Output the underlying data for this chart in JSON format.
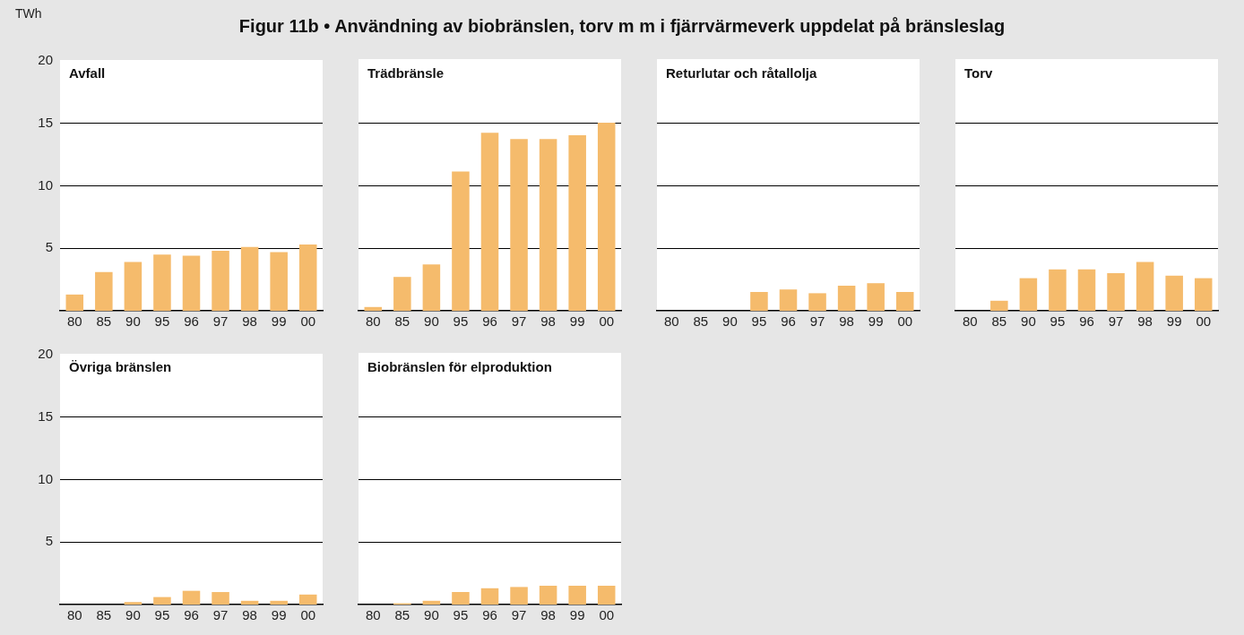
{
  "chart_data": [
    {
      "type": "other",
      "title": "Figur 11b • Användning av biobränslen, torv m m i fjärrvärmeverk uppdelat på bränsleslag"
    },
    {
      "type": "bar",
      "title": "Avfall",
      "ylabel": "TWh",
      "categories": [
        "80",
        "85",
        "90",
        "95",
        "96",
        "97",
        "98",
        "99",
        "00"
      ],
      "values": [
        1.3,
        3.1,
        3.9,
        4.5,
        4.4,
        4.8,
        5.1,
        4.7,
        5.3
      ],
      "color": "#f5bb6c",
      "ylim": [
        0,
        20
      ],
      "yticks": [
        5,
        10,
        15,
        20
      ],
      "grid": "y"
    },
    {
      "type": "bar",
      "title": "Trädbränsle",
      "categories": [
        "80",
        "85",
        "90",
        "95",
        "96",
        "97",
        "98",
        "99",
        "00"
      ],
      "values": [
        0.3,
        2.7,
        3.7,
        11.1,
        14.2,
        13.7,
        13.7,
        14.0,
        15.0
      ],
      "color": "#f5bb6c",
      "ylim": [
        0,
        20
      ],
      "yticks": [
        5,
        10,
        15,
        20
      ],
      "grid": "y",
      "tick_labels": "x"
    },
    {
      "type": "bar",
      "title": "Returlutar och råtallolja",
      "categories": [
        "80",
        "85",
        "90",
        "95",
        "96",
        "97",
        "98",
        "99",
        "00"
      ],
      "values": [
        0,
        0,
        0,
        1.5,
        1.7,
        1.4,
        2.0,
        2.2,
        1.5
      ],
      "color": "#f5bb6c",
      "ylim": [
        0,
        20
      ],
      "yticks": [
        5,
        10,
        15,
        20
      ],
      "grid": "y",
      "tick_labels": "x"
    },
    {
      "type": "bar",
      "title": "Torv",
      "categories": [
        "80",
        "85",
        "90",
        "95",
        "96",
        "97",
        "98",
        "99",
        "00"
      ],
      "values": [
        0,
        0.8,
        2.6,
        3.3,
        3.3,
        3.0,
        3.9,
        2.8,
        2.6
      ],
      "color": "#f5bb6c",
      "ylim": [
        0,
        20
      ],
      "yticks": [
        5,
        10,
        15,
        20
      ],
      "grid": "y",
      "tick_labels": "x"
    },
    {
      "type": "bar",
      "title": "Övriga bränslen",
      "categories": [
        "80",
        "85",
        "90",
        "95",
        "96",
        "97",
        "98",
        "99",
        "00"
      ],
      "values": [
        0,
        0,
        0.2,
        0.6,
        1.1,
        1.0,
        0.3,
        0.3,
        0.8
      ],
      "color": "#f5bb6c",
      "ylim": [
        0,
        20
      ],
      "yticks": [
        5,
        10,
        15,
        20
      ],
      "grid": "y"
    },
    {
      "type": "bar",
      "title": "Biobränslen för elproduktion",
      "categories": [
        "80",
        "85",
        "90",
        "95",
        "96",
        "97",
        "98",
        "99",
        "00"
      ],
      "values": [
        0,
        0.1,
        0.3,
        1.0,
        1.3,
        1.4,
        1.5,
        1.5,
        1.5
      ],
      "color": "#f5bb6c",
      "ylim": [
        0,
        20
      ],
      "yticks": [
        5,
        10,
        15,
        20
      ],
      "grid": "y",
      "tick_labels": "x"
    }
  ]
}
